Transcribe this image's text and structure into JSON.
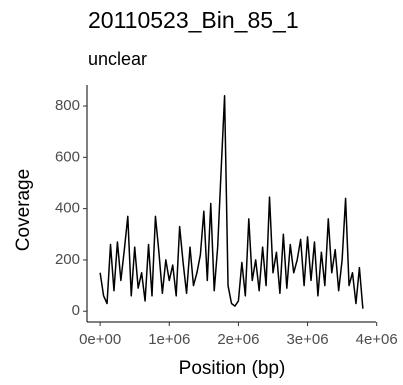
{
  "chart_data": {
    "type": "line",
    "title": "20110523_Bin_85_1",
    "subtitle": "unclear",
    "x_label": "Position (bp)",
    "y_label": "Coverage",
    "color": "#000000",
    "x": [
      0,
      50000,
      100000,
      150000,
      200000,
      250000,
      300000,
      350000,
      400000,
      450000,
      500000,
      550000,
      600000,
      650000,
      700000,
      750000,
      800000,
      850000,
      900000,
      950000,
      1000000,
      1050000,
      1100000,
      1150000,
      1200000,
      1250000,
      1300000,
      1350000,
      1400000,
      1450000,
      1500000,
      1550000,
      1600000,
      1650000,
      1700000,
      1750000,
      1800000,
      1850000,
      1900000,
      1950000,
      2000000,
      2050000,
      2100000,
      2150000,
      2200000,
      2250000,
      2300000,
      2350000,
      2400000,
      2450000,
      2500000,
      2550000,
      2600000,
      2650000,
      2700000,
      2750000,
      2800000,
      2850000,
      2900000,
      2950000,
      3000000,
      3050000,
      3100000,
      3150000,
      3200000,
      3250000,
      3300000,
      3350000,
      3400000,
      3450000,
      3500000,
      3550000,
      3600000,
      3650000,
      3700000,
      3750000,
      3800000
    ],
    "values": [
      150,
      60,
      30,
      260,
      80,
      270,
      120,
      240,
      370,
      60,
      250,
      90,
      150,
      40,
      260,
      60,
      370,
      230,
      70,
      200,
      120,
      180,
      60,
      330,
      190,
      70,
      250,
      100,
      150,
      220,
      390,
      120,
      420,
      80,
      250,
      550,
      840,
      100,
      30,
      20,
      40,
      190,
      60,
      360,
      120,
      200,
      80,
      250,
      100,
      445,
      150,
      230,
      70,
      300,
      90,
      260,
      150,
      200,
      280,
      100,
      290,
      120,
      270,
      60,
      230,
      100,
      360,
      150,
      240,
      80,
      200,
      440,
      100,
      150,
      30,
      170,
      10
    ],
    "xlim": [
      -190000,
      3990000
    ],
    "ylim": [
      -42,
      882
    ],
    "xticks": [
      {
        "value": 0,
        "label": "0e+00"
      },
      {
        "value": 1000000,
        "label": "1e+06"
      },
      {
        "value": 2000000,
        "label": "2e+06"
      },
      {
        "value": 3000000,
        "label": "3e+06"
      },
      {
        "value": 4000000,
        "label": "4e+06"
      }
    ],
    "yticks": [
      0,
      200,
      400,
      600,
      800
    ]
  }
}
